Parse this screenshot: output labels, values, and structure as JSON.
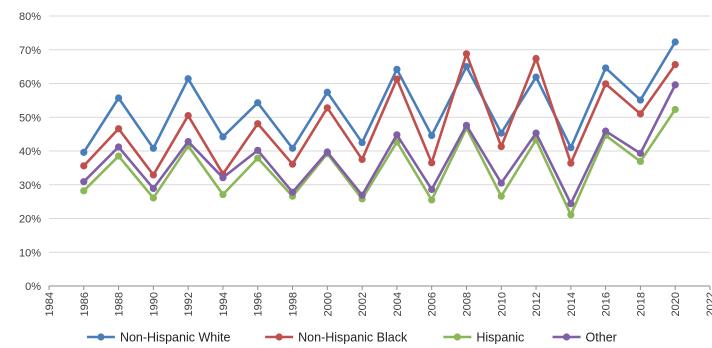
{
  "chart_data": {
    "type": "line",
    "title": "",
    "xlabel": "",
    "ylabel": "",
    "x": [
      1986,
      1988,
      1990,
      1992,
      1994,
      1996,
      1998,
      2000,
      2002,
      2004,
      2006,
      2008,
      2010,
      2012,
      2014,
      2016,
      2018,
      2020
    ],
    "x_ticks": [
      "1984",
      "1986",
      "1988",
      "1990",
      "1992",
      "1994",
      "1996",
      "1998",
      "2000",
      "2002",
      "2004",
      "2006",
      "2008",
      "2010",
      "2012",
      "2014",
      "2016",
      "2018",
      "2020",
      "2022"
    ],
    "xlim": [
      1984,
      2022
    ],
    "ylim": [
      0,
      80
    ],
    "y_ticks": [
      "0%",
      "10%",
      "20%",
      "30%",
      "40%",
      "50%",
      "60%",
      "70%",
      "80%"
    ],
    "y_unit": "%",
    "grid": "horizontal",
    "legend_position": "bottom",
    "series": [
      {
        "name": "Non-Hispanic White",
        "color": "#4A7EBB",
        "values": [
          39.6,
          55.7,
          40.8,
          61.4,
          44.2,
          54.3,
          40.8,
          57.4,
          42.5,
          64.2,
          44.6,
          65.0,
          45.3,
          61.9,
          41.0,
          64.6,
          55.1,
          72.3
        ]
      },
      {
        "name": "Non-Hispanic Black",
        "color": "#C0504D",
        "values": [
          35.6,
          46.6,
          32.9,
          50.5,
          33.2,
          48.1,
          36.1,
          52.8,
          37.5,
          61.3,
          36.5,
          68.8,
          41.3,
          67.4,
          36.4,
          59.9,
          51.0,
          65.6
        ]
      },
      {
        "name": "Hispanic",
        "color": "#8CB758",
        "values": [
          28.2,
          38.5,
          26.1,
          41.5,
          27.1,
          37.9,
          26.6,
          39.2,
          25.8,
          42.7,
          25.5,
          46.8,
          26.6,
          43.3,
          21.1,
          44.6,
          36.9,
          52.3
        ]
      },
      {
        "name": "Other",
        "color": "#7F5FA5",
        "values": [
          30.9,
          41.2,
          28.9,
          42.8,
          32.1,
          40.2,
          27.8,
          39.7,
          26.9,
          44.8,
          28.6,
          47.6,
          30.5,
          45.3,
          24.4,
          45.9,
          39.3,
          59.6
        ]
      }
    ]
  }
}
